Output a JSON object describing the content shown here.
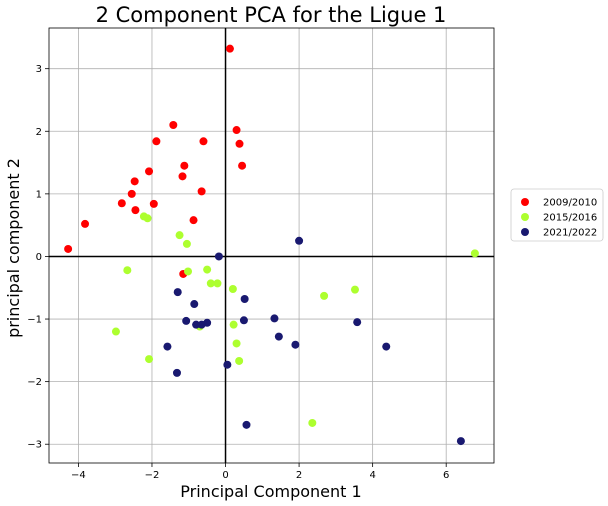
{
  "chart_data": {
    "type": "scatter",
    "title": "2 Component PCA for the Ligue 1",
    "xlabel": "Principal Component 1",
    "ylabel": "principal component 2",
    "xlim": [
      -4.8,
      7.3
    ],
    "ylim": [
      -3.3,
      3.65
    ],
    "xticks": [
      -4,
      -2,
      0,
      2,
      4,
      6
    ],
    "yticks": [
      -3,
      -2,
      -1,
      0,
      1,
      2,
      3
    ],
    "grid": true,
    "legend_position": "right",
    "series": [
      {
        "name": "2009/2010",
        "color": "#ff0000",
        "points": [
          [
            0.12,
            3.32
          ],
          [
            -1.42,
            2.1
          ],
          [
            0.3,
            2.02
          ],
          [
            -1.88,
            1.84
          ],
          [
            -0.6,
            1.84
          ],
          [
            0.38,
            1.8
          ],
          [
            -1.12,
            1.45
          ],
          [
            0.45,
            1.45
          ],
          [
            -2.08,
            1.36
          ],
          [
            -1.17,
            1.28
          ],
          [
            -2.47,
            1.2
          ],
          [
            -0.65,
            1.04
          ],
          [
            -2.55,
            1.0
          ],
          [
            -2.82,
            0.85
          ],
          [
            -1.95,
            0.84
          ],
          [
            -2.45,
            0.74
          ],
          [
            -0.87,
            0.58
          ],
          [
            -3.82,
            0.52
          ],
          [
            -4.28,
            0.12
          ],
          [
            -1.15,
            -0.28
          ]
        ]
      },
      {
        "name": "2015/2016",
        "color": "#adff2f",
        "points": [
          [
            -2.22,
            0.64
          ],
          [
            -2.12,
            0.61
          ],
          [
            -1.25,
            0.34
          ],
          [
            -1.05,
            0.2
          ],
          [
            6.78,
            0.05
          ],
          [
            -2.67,
            -0.22
          ],
          [
            -1.02,
            -0.24
          ],
          [
            -0.5,
            -0.21
          ],
          [
            -0.4,
            -0.43
          ],
          [
            -0.22,
            -0.43
          ],
          [
            0.2,
            -0.52
          ],
          [
            3.52,
            -0.53
          ],
          [
            2.68,
            -0.63
          ],
          [
            0.22,
            -1.09
          ],
          [
            -0.7,
            -1.12
          ],
          [
            -2.98,
            -1.2
          ],
          [
            0.3,
            -1.39
          ],
          [
            -2.08,
            -1.64
          ],
          [
            0.37,
            -1.67
          ],
          [
            2.36,
            -2.66
          ]
        ]
      },
      {
        "name": "2021/2022",
        "color": "#191970",
        "points": [
          [
            2.0,
            0.25
          ],
          [
            -0.18,
            0.0
          ],
          [
            -1.3,
            -0.57
          ],
          [
            0.52,
            -0.68
          ],
          [
            -0.85,
            -0.76
          ],
          [
            1.33,
            -0.99
          ],
          [
            -1.07,
            -1.03
          ],
          [
            0.5,
            -1.02
          ],
          [
            3.58,
            -1.05
          ],
          [
            -0.5,
            -1.06
          ],
          [
            -0.8,
            -1.09
          ],
          [
            -0.65,
            -1.09
          ],
          [
            1.45,
            -1.28
          ],
          [
            1.9,
            -1.41
          ],
          [
            -1.58,
            -1.44
          ],
          [
            4.37,
            -1.44
          ],
          [
            0.05,
            -1.73
          ],
          [
            -1.32,
            -1.86
          ],
          [
            0.57,
            -2.69
          ],
          [
            6.4,
            -2.95
          ]
        ]
      }
    ]
  }
}
